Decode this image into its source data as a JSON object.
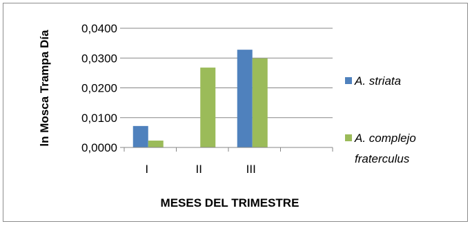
{
  "chart_data": {
    "type": "bar",
    "title": "",
    "xlabel": "MESES  DEL TRIMESTRE",
    "ylabel": "ln Mosca Trampa Día",
    "categories": [
      "I",
      "II",
      "III",
      ""
    ],
    "ylim": [
      0,
      0.04
    ],
    "yticks": [
      "0,0000",
      "0,0100",
      "0,0200",
      "0,0300",
      "0,0400"
    ],
    "grid": true,
    "legend_position": "right",
    "series": [
      {
        "name": "A. striata",
        "color": "#4f81bd",
        "values": [
          0.0072,
          0,
          0.0328,
          null
        ]
      },
      {
        "name": "A. complejo fraterculus",
        "legend_lines": [
          "A. complejo",
          "fraterculus"
        ],
        "color": "#9bbb59",
        "values": [
          0.0023,
          0.0268,
          0.0299,
          null
        ]
      }
    ]
  }
}
